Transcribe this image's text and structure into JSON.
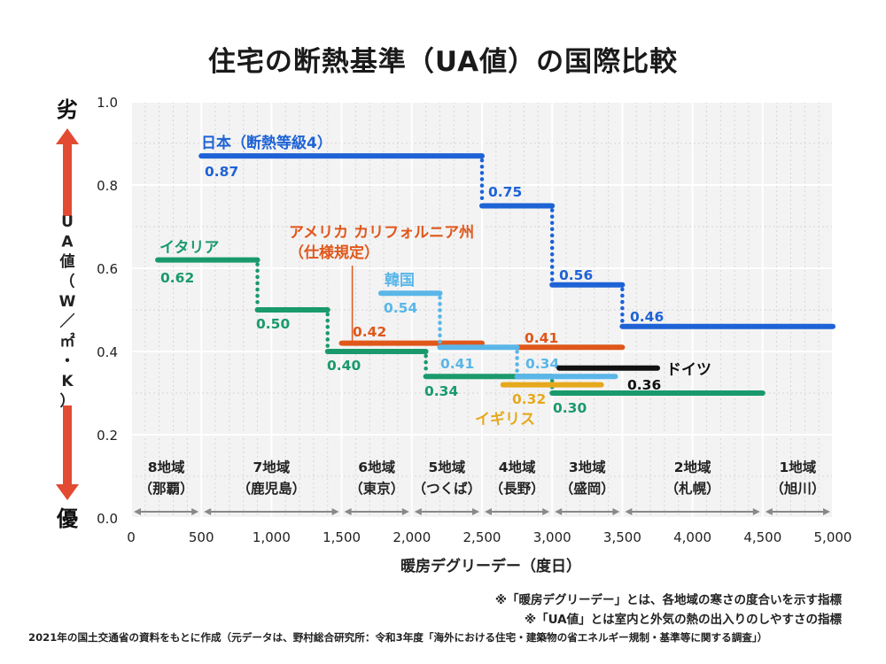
{
  "chart_data": {
    "type": "line",
    "title": "住宅の断熱基準（UA値）の国際比較",
    "xlabel": "暖房デグリーデー（度日）",
    "ylabel": "UA値（W／㎡・K）",
    "y_top_label": "劣",
    "y_bottom_label": "優",
    "xlim": [
      0,
      5000
    ],
    "ylim": [
      0,
      1.0
    ],
    "x_ticks": [
      {
        "value": 0,
        "label": "0"
      },
      {
        "value": 500,
        "label": "500"
      },
      {
        "value": 1000,
        "label": "1,000"
      },
      {
        "value": 1500,
        "label": "1,500"
      },
      {
        "value": 2000,
        "label": "2,000"
      },
      {
        "value": 2500,
        "label": "2,500"
      },
      {
        "value": 3000,
        "label": "3,000"
      },
      {
        "value": 3500,
        "label": "3,500"
      },
      {
        "value": 4000,
        "label": "4,000"
      },
      {
        "value": 4500,
        "label": "4,500"
      },
      {
        "value": 5000,
        "label": "5,000"
      }
    ],
    "y_ticks": [
      {
        "value": 0.0,
        "label": "0.0"
      },
      {
        "value": 0.2,
        "label": "0.2"
      },
      {
        "value": 0.4,
        "label": "0.4"
      },
      {
        "value": 0.6,
        "label": "0.6"
      },
      {
        "value": 0.8,
        "label": "0.8"
      },
      {
        "value": 1.0,
        "label": "1.0"
      }
    ],
    "grid": true,
    "series": [
      {
        "name": "日本（断熱等級4）",
        "color": "#1e63d6",
        "segments": [
          {
            "x0": 500,
            "x1": 2500,
            "y": 0.87,
            "label": "0.87"
          },
          {
            "x0": 2500,
            "x1": 3000,
            "y": 0.75,
            "label": "0.75"
          },
          {
            "x0": 3000,
            "x1": 3500,
            "y": 0.56,
            "label": "0.56"
          },
          {
            "x0": 3500,
            "x1": 5000,
            "y": 0.46,
            "label": "0.46"
          }
        ]
      },
      {
        "name": "イタリア",
        "color": "#1a9a6c",
        "segments": [
          {
            "x0": 190,
            "x1": 900,
            "y": 0.62,
            "label": "0.62"
          },
          {
            "x0": 900,
            "x1": 1400,
            "y": 0.5,
            "label": "0.50"
          },
          {
            "x0": 1400,
            "x1": 2100,
            "y": 0.4,
            "label": "0.40"
          },
          {
            "x0": 2100,
            "x1": 3000,
            "y": 0.34,
            "label": "0.34"
          },
          {
            "x0": 3000,
            "x1": 4500,
            "y": 0.3,
            "label": "0.30"
          }
        ]
      },
      {
        "name": "アメリカ カリフォルニア州（仕様規定）",
        "color": "#e0571a",
        "segments": [
          {
            "x0": 1500,
            "x1": 2500,
            "y": 0.42,
            "label": "0.42"
          },
          {
            "x0": 2750,
            "x1": 3500,
            "y": 0.41,
            "label": "0.41"
          }
        ]
      },
      {
        "name": "韓国",
        "color": "#5ab6e8",
        "segments": [
          {
            "x0": 1780,
            "x1": 2200,
            "y": 0.54,
            "label": "0.54"
          },
          {
            "x0": 2200,
            "x1": 2750,
            "y": 0.41,
            "label": "0.41"
          },
          {
            "x0": 2750,
            "x1": 3450,
            "y": 0.34,
            "label": "0.34"
          }
        ]
      },
      {
        "name": "イギリス",
        "color": "#e6a91c",
        "segments": [
          {
            "x0": 2650,
            "x1": 3350,
            "y": 0.32,
            "label": "0.32"
          }
        ]
      },
      {
        "name": "ドイツ",
        "color": "#111111",
        "segments": [
          {
            "x0": 3050,
            "x1": 3750,
            "y": 0.36,
            "label": "0.36"
          }
        ]
      }
    ],
    "regions": [
      {
        "label": "8地域",
        "city": "（那覇）",
        "x0": 0,
        "x1": 500
      },
      {
        "label": "7地域",
        "city": "（鹿児島）",
        "x0": 500,
        "x1": 1500
      },
      {
        "label": "6地域",
        "city": "（東京）",
        "x0": 1500,
        "x1": 2000
      },
      {
        "label": "5地域",
        "city": "（つくば）",
        "x0": 2000,
        "x1": 2500
      },
      {
        "label": "4地域",
        "city": "（長野）",
        "x0": 2500,
        "x1": 3000
      },
      {
        "label": "3地域",
        "city": "（盛岡）",
        "x0": 3000,
        "x1": 3500
      },
      {
        "label": "2地域",
        "city": "（札幌）",
        "x0": 3500,
        "x1": 4500
      },
      {
        "label": "1地域",
        "city": "（旭川）",
        "x0": 4500,
        "x1": 5000
      }
    ]
  },
  "notes": [
    "※「暖房デグリーデー」とは、各地域の寒さの度合いを示す指標",
    "※「UA値」とは室内と外気の熱の出入りのしやすさの指標"
  ],
  "source": "2021年の国土交通省の資料をもとに作成（元データは、野村総合研究所：令和3年度「海外における住宅・建築物の省エネルギー規制・基準等に関する調査」）"
}
